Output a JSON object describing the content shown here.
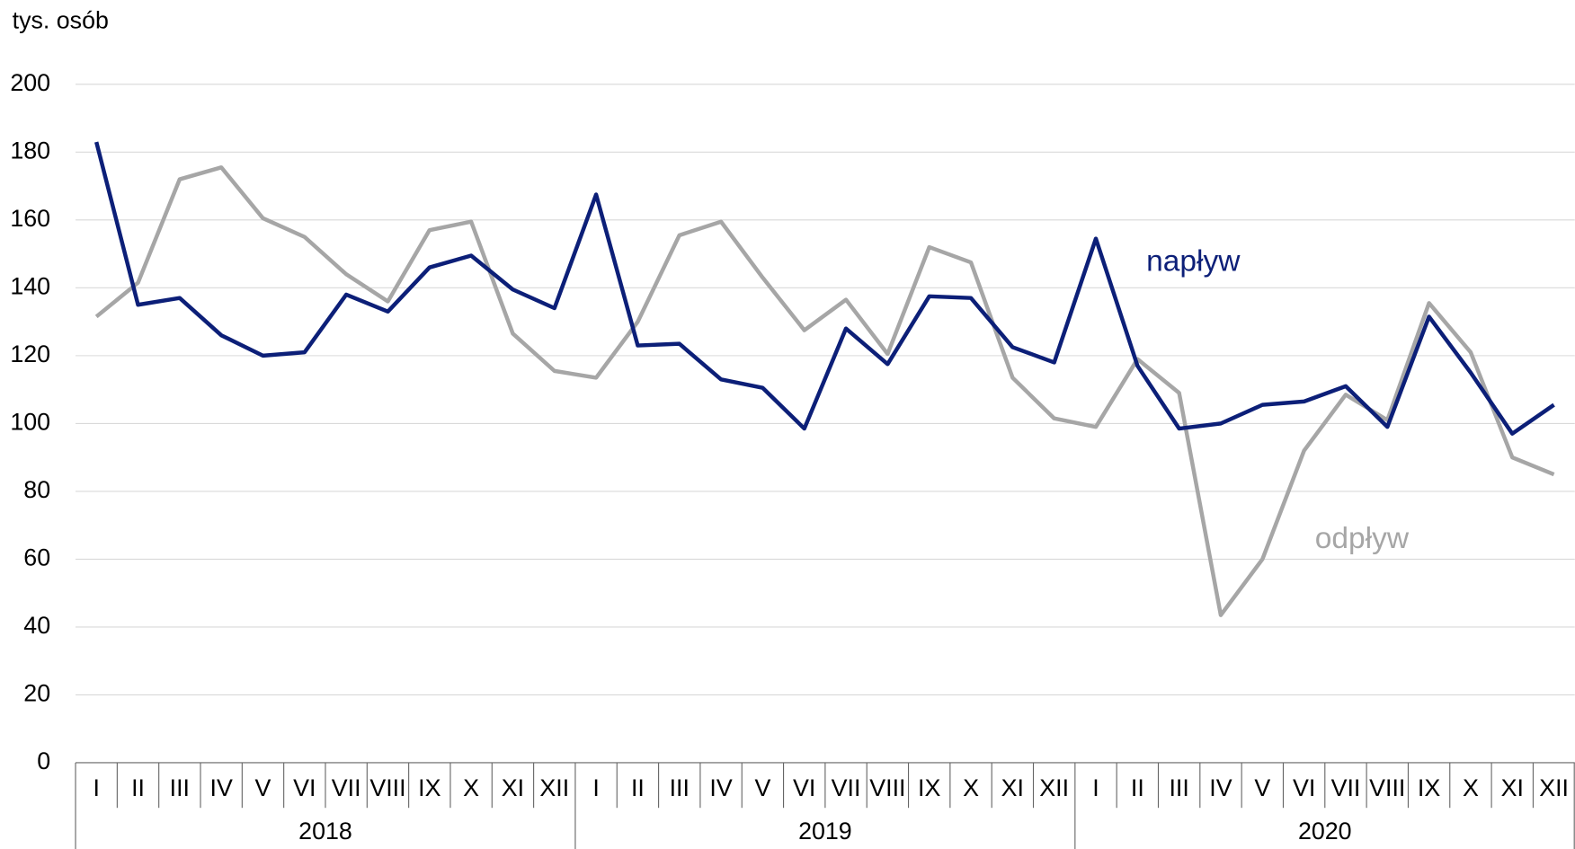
{
  "chart_data": {
    "type": "line",
    "y_axis_label": "tys. osób",
    "categories": [
      "I",
      "II",
      "III",
      "IV",
      "V",
      "VI",
      "VII",
      "VIII",
      "IX",
      "X",
      "XI",
      "XII",
      "I",
      "II",
      "III",
      "IV",
      "V",
      "VI",
      "VII",
      "VIII",
      "IX",
      "X",
      "XI",
      "XII",
      "I",
      "II",
      "III",
      "IV",
      "V",
      "VI",
      "VII",
      "VIII",
      "IX",
      "X",
      "XI",
      "XII"
    ],
    "category_groups": [
      "2018",
      "2019",
      "2020"
    ],
    "series": [
      {
        "name": "napływ",
        "color": "#0c1f78",
        "values": [
          183,
          135,
          137,
          126,
          120,
          121,
          138,
          133,
          146,
          149.5,
          139.5,
          134,
          167.5,
          123,
          123.5,
          113,
          110.5,
          98.5,
          128,
          117.5,
          137.5,
          137,
          122.5,
          118,
          154.5,
          117,
          98.5,
          100,
          105.5,
          106.5,
          111,
          99,
          131.5,
          115,
          97,
          105.5
        ]
      },
      {
        "name": "odpływ",
        "color": "#a6a6a6",
        "values": [
          131.5,
          141.5,
          172,
          175.5,
          160.5,
          155,
          144,
          136,
          157,
          159.5,
          126.5,
          115.5,
          113.5,
          130,
          155.5,
          159.5,
          143,
          127.5,
          136.5,
          120.5,
          152,
          147.5,
          113.5,
          101.5,
          99,
          119,
          109,
          43.5,
          60,
          92,
          108.5,
          101,
          135.5,
          121,
          90,
          85
        ]
      }
    ],
    "ylim": [
      0,
      200
    ],
    "yticks": [
      0,
      20,
      40,
      60,
      80,
      100,
      120,
      140,
      160,
      180,
      200
    ],
    "grid": true
  }
}
